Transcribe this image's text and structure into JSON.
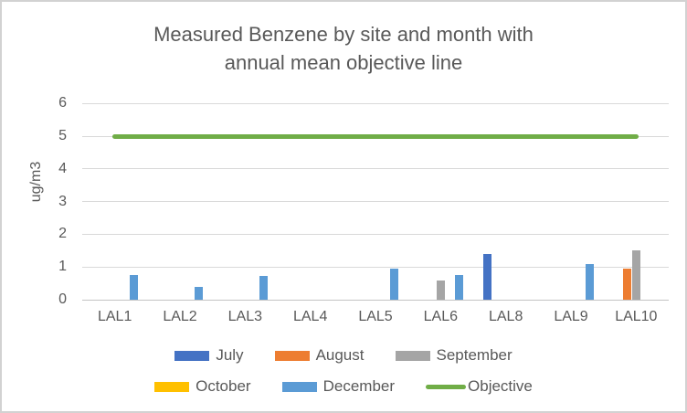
{
  "chart_data": {
    "type": "bar",
    "title": "Measured Benzene by site and month with annual mean objective line",
    "title_lines": [
      "Measured Benzene by site and month with",
      "annual mean objective line"
    ],
    "ylabel": "ug/m3",
    "xlabel": "",
    "ylim": [
      0,
      6
    ],
    "yticks": [
      0,
      1,
      2,
      3,
      4,
      5,
      6
    ],
    "grid": true,
    "legend_position": "bottom",
    "categories": [
      "LAL1",
      "LAL2",
      "LAL3",
      "LAL4",
      "LAL5",
      "LAL6",
      "LAL8",
      "LAL9",
      "LAL10"
    ],
    "series": [
      {
        "name": "July",
        "color": "#4472C4",
        "values": [
          null,
          null,
          null,
          null,
          null,
          null,
          1.4,
          null,
          null
        ]
      },
      {
        "name": "August",
        "color": "#ED7D31",
        "values": [
          null,
          null,
          null,
          null,
          null,
          null,
          null,
          null,
          0.95
        ]
      },
      {
        "name": "September",
        "color": "#A5A5A5",
        "values": [
          null,
          null,
          null,
          null,
          null,
          0.6,
          null,
          null,
          1.5
        ]
      },
      {
        "name": "October",
        "color": "#FFC000",
        "values": [
          null,
          null,
          null,
          null,
          null,
          null,
          null,
          null,
          null
        ]
      },
      {
        "name": "December",
        "color": "#5B9BD5",
        "values": [
          0.75,
          0.4,
          0.72,
          null,
          0.95,
          0.75,
          null,
          1.1,
          null
        ]
      }
    ],
    "objective_line": {
      "name": "Objective",
      "color": "#70AD47",
      "value": 5
    },
    "legend_rows": [
      [
        "July",
        "August",
        "September"
      ],
      [
        "October",
        "December",
        "Objective"
      ]
    ]
  },
  "colors": {
    "text": "#595959",
    "gridline": "#d9d9d9",
    "axis_line": "#c3c3c3",
    "frame_border": "#d2d2d2",
    "background": "#ffffff"
  }
}
